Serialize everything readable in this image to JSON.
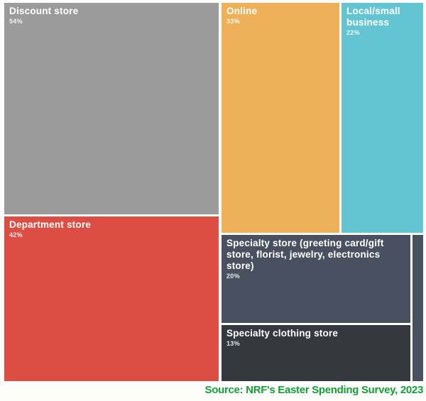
{
  "chart_data": {
    "type": "treemap",
    "title": "",
    "legend": "none",
    "text_color": "#ffffff",
    "items": [
      {
        "label": "Discount store",
        "value": 54,
        "pct": "54%",
        "color": "#9b9b9b"
      },
      {
        "label": "Online",
        "value": 33,
        "pct": "33%",
        "color": "#eeb159"
      },
      {
        "label": "Local/small business",
        "value": 22,
        "pct": "22%",
        "color": "#63c5d2"
      },
      {
        "label": "Department store",
        "value": 42,
        "pct": "42%",
        "color": "#dc4e43"
      },
      {
        "label": "Specialty store (greeting card/gift store, florist, jewelry, electronics store)",
        "value": 20,
        "pct": "20%",
        "color": "#495161"
      },
      {
        "label": "Specialty clothing store",
        "value": 13,
        "pct": "13%",
        "color": "#35393f"
      },
      {
        "label": "",
        "value": null,
        "pct": "",
        "color": "#495161"
      }
    ],
    "source": "Source: NRF's Easter Spending Survey, 2023",
    "source_color": "#149e3a"
  }
}
